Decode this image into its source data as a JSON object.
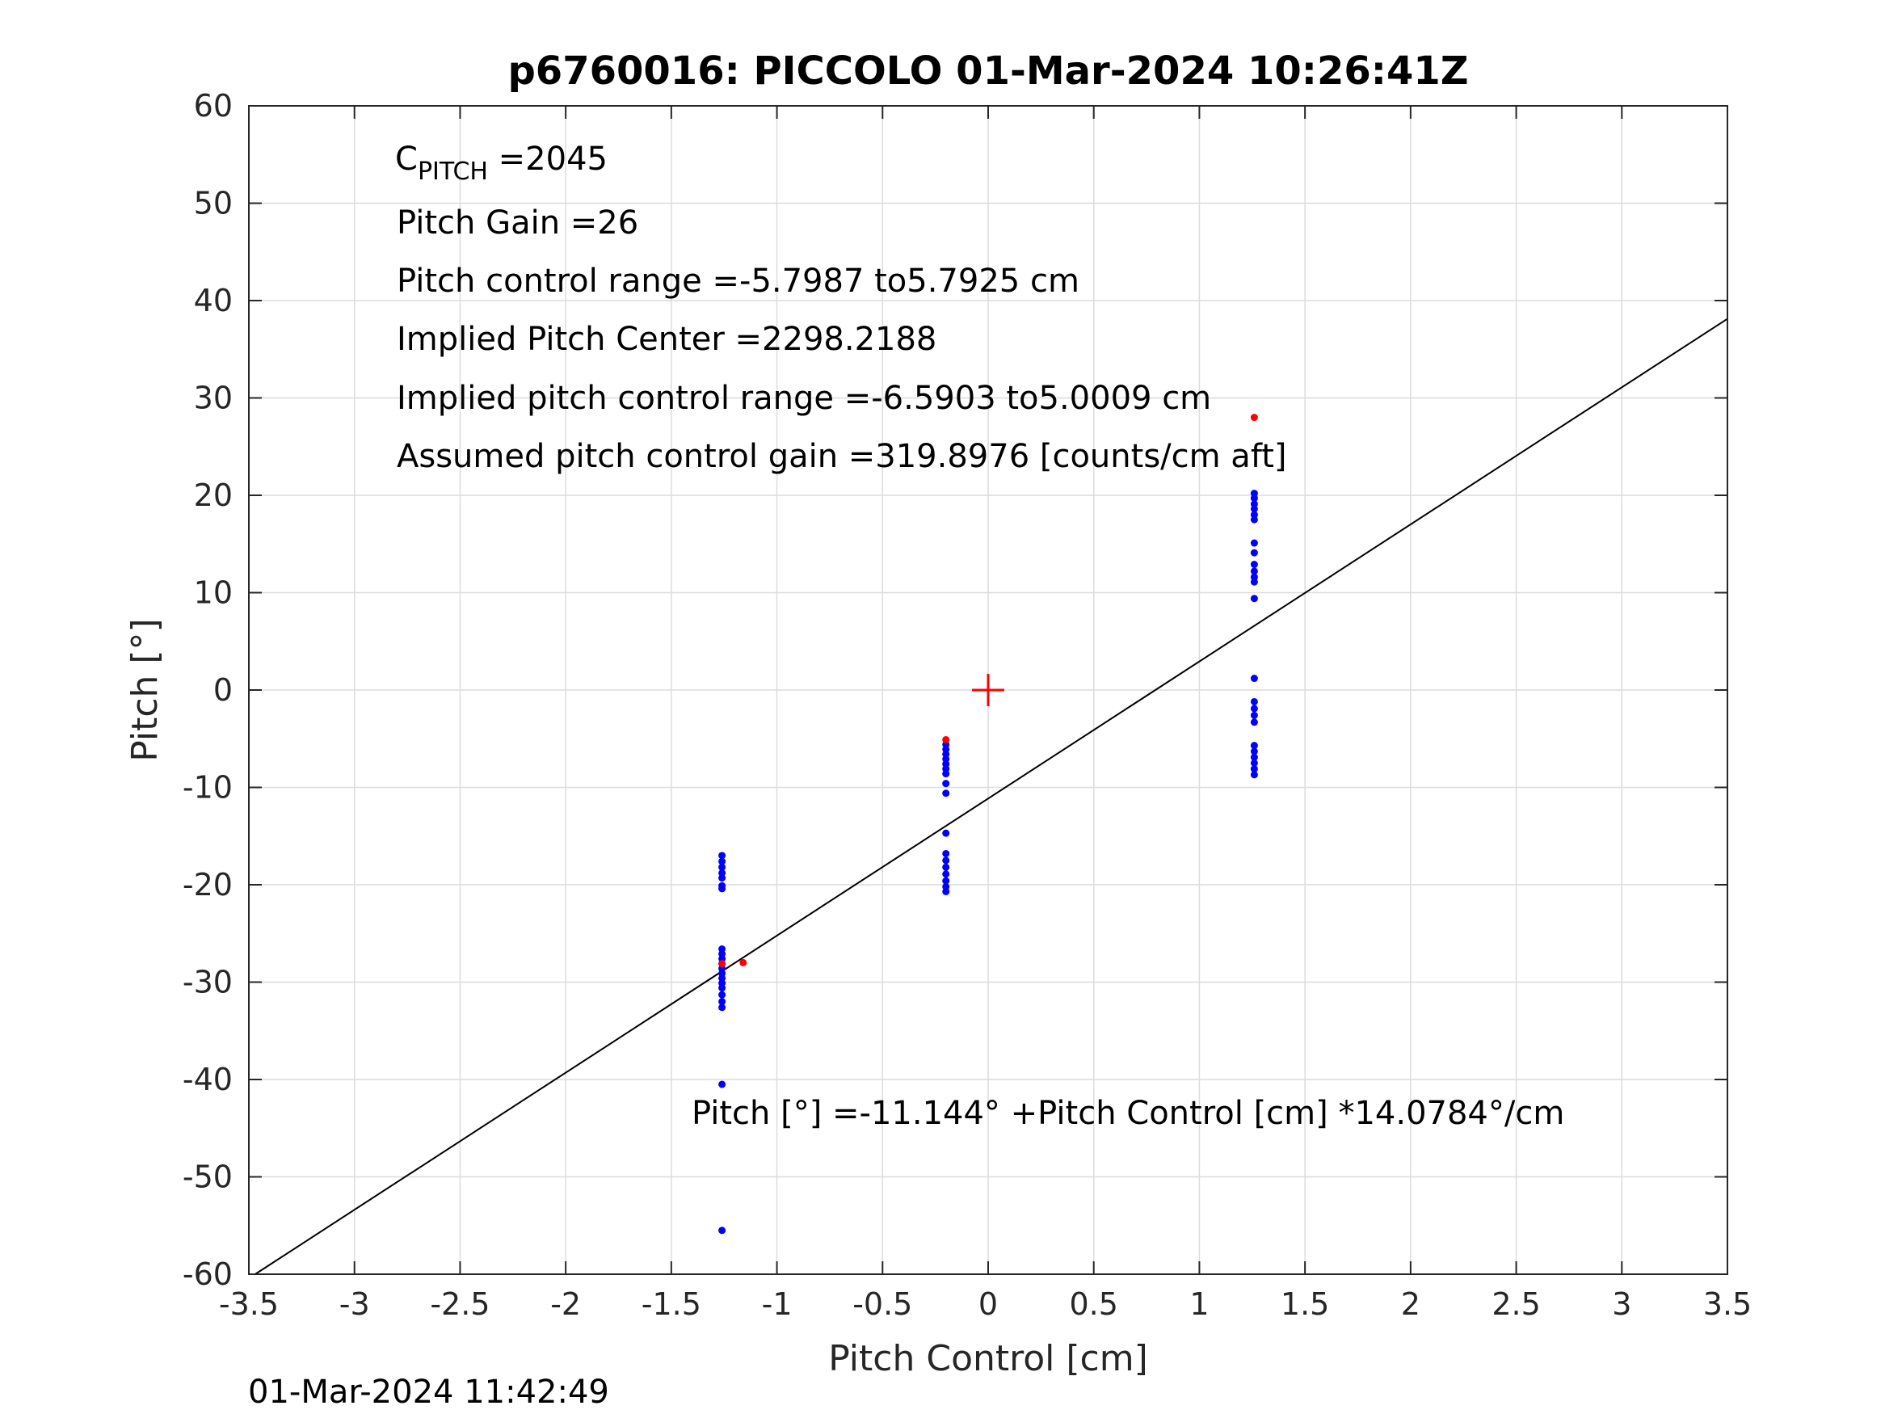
{
  "chart_data": {
    "type": "scatter",
    "title": "p6760016: PICCOLO 01-Mar-2024 10:26:41Z",
    "xlabel": "Pitch Control [cm]",
    "ylabel": "Pitch [°]",
    "xlim": [
      -3.5,
      3.5
    ],
    "ylim": [
      -60,
      60
    ],
    "x_ticks": [
      -3.5,
      -3,
      -2.5,
      -2,
      -1.5,
      -1,
      -0.5,
      0,
      0.5,
      1,
      1.5,
      2,
      2.5,
      3,
      3.5
    ],
    "x_tick_labels": [
      "-3.5",
      "-3",
      "-2.5",
      "-2",
      "-1.5",
      "-1",
      "-0.5",
      "0",
      "0.5",
      "1",
      "1.5",
      "2",
      "2.5",
      "3",
      "3.5"
    ],
    "y_ticks": [
      -60,
      -50,
      -40,
      -30,
      -20,
      -10,
      0,
      10,
      20,
      30,
      40,
      50,
      60
    ],
    "y_tick_labels": [
      "-60",
      "-50",
      "-40",
      "-30",
      "-20",
      "-10",
      "0",
      "10",
      "20",
      "30",
      "40",
      "50",
      "60"
    ],
    "grid": true,
    "colors": {
      "blue_points": "#0000ff",
      "red_points": "#ff0000",
      "fit_line": "#000000",
      "grid": "#dcdcdc"
    },
    "series": [
      {
        "color": "#0000ff",
        "points": [
          [
            -1.26,
            -17.0
          ],
          [
            -1.26,
            -17.6
          ],
          [
            -1.26,
            -18.2
          ],
          [
            -1.26,
            -18.8
          ],
          [
            -1.26,
            -19.3
          ],
          [
            -1.26,
            -20.1
          ],
          [
            -1.26,
            -20.4
          ],
          [
            -1.26,
            -26.6
          ],
          [
            -1.26,
            -27.1
          ],
          [
            -1.26,
            -27.6
          ],
          [
            -1.26,
            -28.1
          ],
          [
            -1.26,
            -28.6
          ],
          [
            -1.26,
            -29.1
          ],
          [
            -1.26,
            -29.6
          ],
          [
            -1.26,
            -30.1
          ],
          [
            -1.26,
            -30.6
          ],
          [
            -1.26,
            -31.3
          ],
          [
            -1.26,
            -32.0
          ],
          [
            -1.26,
            -32.6
          ],
          [
            -1.26,
            -40.5
          ],
          [
            -1.26,
            -55.5
          ],
          [
            -0.2,
            -5.6
          ],
          [
            -0.2,
            -6.1
          ],
          [
            -0.2,
            -6.6
          ],
          [
            -0.2,
            -7.1
          ],
          [
            -0.2,
            -7.6
          ],
          [
            -0.2,
            -8.1
          ],
          [
            -0.2,
            -8.6
          ],
          [
            -0.2,
            -9.6
          ],
          [
            -0.2,
            -10.6
          ],
          [
            -0.2,
            -14.7
          ],
          [
            -0.2,
            -16.8
          ],
          [
            -0.2,
            -17.5
          ],
          [
            -0.2,
            -18.2
          ],
          [
            -0.2,
            -18.9
          ],
          [
            -0.2,
            -19.6
          ],
          [
            -0.2,
            -20.2
          ],
          [
            -0.2,
            -20.7
          ],
          [
            1.26,
            20.2
          ],
          [
            1.26,
            19.7
          ],
          [
            1.26,
            19.1
          ],
          [
            1.26,
            18.6
          ],
          [
            1.26,
            18.0
          ],
          [
            1.26,
            17.5
          ],
          [
            1.26,
            15.1
          ],
          [
            1.26,
            14.1
          ],
          [
            1.26,
            12.9
          ],
          [
            1.26,
            12.2
          ],
          [
            1.26,
            11.6
          ],
          [
            1.26,
            11.1
          ],
          [
            1.26,
            9.4
          ],
          [
            1.26,
            1.2
          ],
          [
            1.26,
            -1.2
          ],
          [
            1.26,
            -1.9
          ],
          [
            1.26,
            -2.6
          ],
          [
            1.26,
            -3.3
          ],
          [
            1.26,
            -5.7
          ],
          [
            1.26,
            -6.3
          ],
          [
            1.26,
            -6.9
          ],
          [
            1.26,
            -7.5
          ],
          [
            1.26,
            -8.1
          ],
          [
            1.26,
            -8.7
          ]
        ]
      },
      {
        "color": "#ff0000",
        "points": [
          [
            -0.2,
            -5.1
          ],
          [
            1.26,
            28.0
          ],
          [
            -1.26,
            -28.1
          ],
          [
            -1.16,
            -28.0
          ]
        ]
      }
    ],
    "fit_line": {
      "intercept": -11.144,
      "slope": 14.0784
    },
    "center_marker": {
      "x": 0,
      "y": 0,
      "color": "#ff0000",
      "symbol": "+"
    },
    "annotations": {
      "cpitch_main": "C",
      "cpitch_sub": "PITCH",
      "cpitch_value": " =2045",
      "pitch_gain": "Pitch Gain =26",
      "control_range": "Pitch control range =-5.7987 to5.7925 cm",
      "implied_center": "Implied Pitch Center =2298.2188",
      "implied_range": "Implied pitch control range =-6.5903 to5.0009 cm",
      "assumed_gain": "Assumed pitch control gain =319.8976 [counts/cm aft]",
      "equation": "Pitch [°] =-11.144° +Pitch Control [cm] *14.0784°/cm"
    },
    "timestamp": "01-Mar-2024 11:42:49"
  }
}
